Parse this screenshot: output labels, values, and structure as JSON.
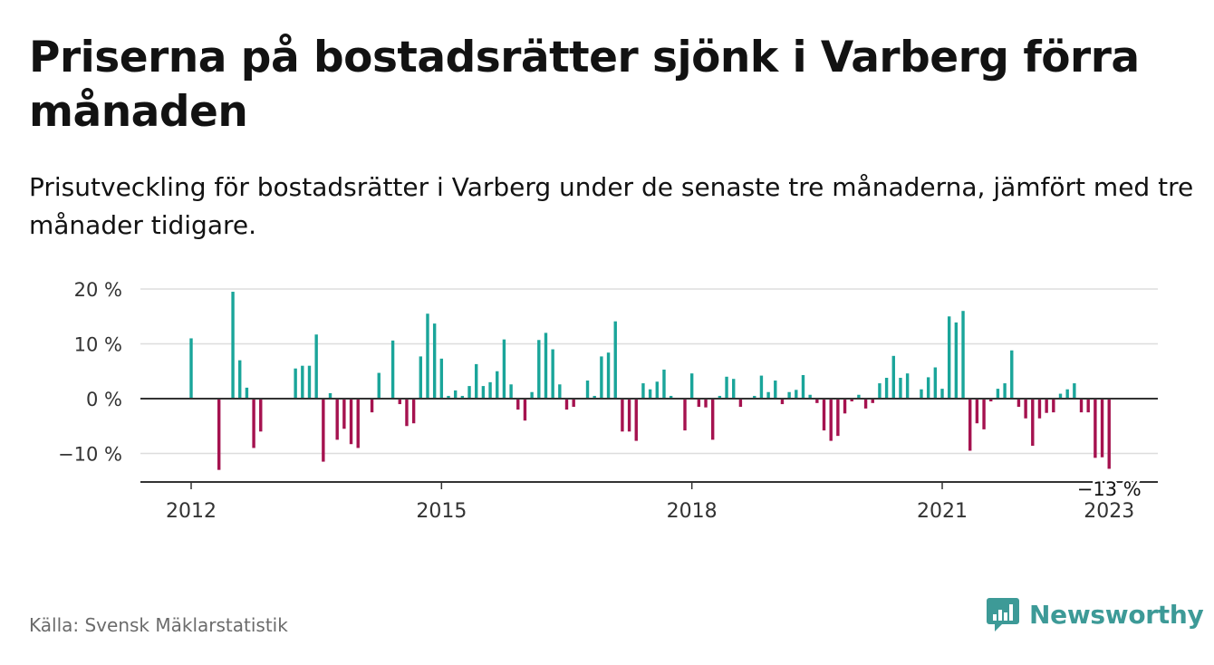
{
  "header": {
    "title": "Priserna på bostadsrätter sjönk i Varberg förra månaden",
    "subtitle": "Prisutveckling för bostadsrätter i Varberg under de senaste tre månaderna, jämfört med tre månader tidigare."
  },
  "footer": {
    "source": "Källa: Svensk Mäklarstatistik",
    "brand": "Newsworthy"
  },
  "colors": {
    "positive": "#1aa59a",
    "negative": "#a5124f",
    "baseline": "#333333",
    "grid": "#dddddd",
    "brand": "#3d9a97"
  },
  "chart_data": {
    "type": "bar",
    "x_start": "2012-01",
    "x_step": "month",
    "ylim": [
      -15,
      22
    ],
    "yticks": [
      20,
      10,
      0,
      -10
    ],
    "ytick_labels": [
      "20 %",
      "10 %",
      "0 %",
      "−10 %"
    ],
    "xtick_labels": [
      "2012",
      "2015",
      "2018",
      "2021",
      "2023"
    ],
    "xtick_index": [
      0,
      36,
      72,
      108,
      132
    ],
    "grid": true,
    "last_label": "−13 %",
    "values": [
      11,
      0,
      0,
      0,
      -13,
      0,
      19.5,
      7,
      2,
      -9,
      -6,
      0,
      0,
      0,
      0,
      5.5,
      6,
      6,
      11.7,
      -11.5,
      1,
      -7.5,
      -5.5,
      -8.3,
      -9,
      0,
      -2.5,
      4.7,
      0,
      10.6,
      -1,
      -5,
      -4.5,
      7.7,
      15.5,
      13.7,
      7.3,
      0.5,
      1.5,
      0.5,
      2.3,
      6.3,
      2.3,
      3,
      5,
      10.8,
      2.6,
      -2,
      -4,
      1.2,
      10.7,
      12,
      9,
      2.6,
      -2,
      -1.5,
      0,
      3.3,
      0.5,
      7.7,
      8.4,
      14.1,
      -6,
      -6,
      -7.7,
      2.8,
      1.7,
      3.1,
      5.3,
      0.5,
      0,
      -5.8,
      4.6,
      -1.5,
      -1.6,
      -7.5,
      0.5,
      4,
      3.6,
      -1.5,
      0,
      0.5,
      4.2,
      1.2,
      3.3,
      -1,
      1.2,
      1.6,
      4.3,
      0.7,
      -0.8,
      -5.8,
      -7.7,
      -6.8,
      -2.7,
      -0.5,
      0.7,
      -1.8,
      -0.8,
      2.8,
      3.8,
      7.8,
      3.8,
      4.6,
      0,
      1.7,
      3.9,
      5.7,
      1.8,
      15,
      13.9,
      16,
      -9.5,
      -4.5,
      -5.6,
      -0.5,
      1.8,
      2.8,
      8.8,
      -1.5,
      -3.6,
      -8.6,
      -3.6,
      -2.6,
      -2.5,
      0.9,
      1.7,
      2.8,
      -2.5,
      -2.5,
      -10.8,
      -10.7,
      -12.8
    ]
  }
}
